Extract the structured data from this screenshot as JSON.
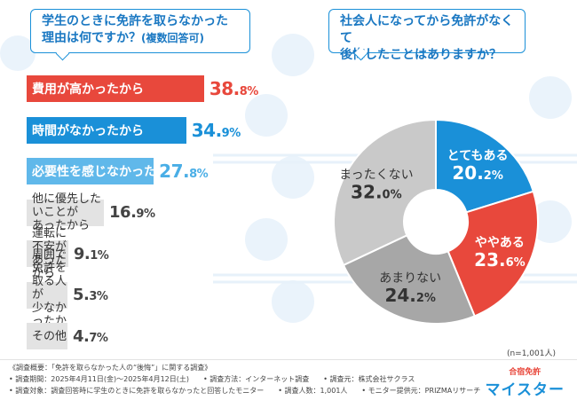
{
  "left_title": {
    "line1": "学生のときに免許を取らなかった",
    "line2": "理由は何ですか？",
    "note": "(複数回答可)"
  },
  "right_title": {
    "line1": "社会人になってから免許がなくて",
    "line2": "後悔したことはありますか？"
  },
  "colors": {
    "red": "#e8483c",
    "blue": "#1a90d8",
    "light_blue": "#60b8ea",
    "gray_bar": "#e3e3e3",
    "pie_gray": "#a7a7a7",
    "pie_lightgray": "#c9c9c9"
  },
  "chart_data": [
    {
      "type": "bar",
      "orientation": "horizontal",
      "categories": [
        "費用が高かったから",
        "時間がなかったから",
        "必要性を感じなかったから",
        "他に優先したいことがあったから",
        "運転に不安があったから",
        "周囲で免許を取る人が少なかったから",
        "その他"
      ],
      "values": [
        38.8,
        34.9,
        27.8,
        16.9,
        9.1,
        5.3,
        4.7
      ],
      "value_labels": [
        {
          "int": "38.",
          "dec": "8%"
        },
        {
          "int": "34.",
          "dec": "9%"
        },
        {
          "int": "27.",
          "dec": "8%"
        },
        {
          "int": "16.",
          "dec": "9%"
        },
        {
          "int": "9.",
          "dec": "1%"
        },
        {
          "int": "5.",
          "dec": "3%"
        },
        {
          "int": "4.",
          "dec": "7%"
        }
      ],
      "bar_colors": [
        "#e8483c",
        "#1a90d8",
        "#60b8ea",
        "#e3e3e3",
        "#e3e3e3",
        "#e3e3e3",
        "#e3e3e3"
      ],
      "label_colors": [
        "red",
        "blue",
        "lblue",
        "gray",
        "gray",
        "gray",
        "gray"
      ],
      "display_lines": [
        [
          "費用が高かったから"
        ],
        [
          "時間がなかったから"
        ],
        [
          "必要性を感じなかったから"
        ],
        [
          "他に優先したいことが",
          "あったから"
        ],
        [
          "運転に不安があったから"
        ],
        [
          "周囲で免許を取る人が",
          "少なかったから"
        ],
        [
          "その他"
        ]
      ],
      "unit": "%"
    },
    {
      "type": "pie",
      "style": "donut",
      "slices": [
        {
          "label": "とてもある",
          "value": 20.2,
          "value_label": {
            "int": "20.",
            "dec": "2%"
          },
          "color": "#1a90d8",
          "text_color": "#ffffff"
        },
        {
          "label": "ややある",
          "value": 23.6,
          "value_label": {
            "int": "23.",
            "dec": "6%"
          },
          "color": "#e8483c",
          "text_color": "#ffffff"
        },
        {
          "label": "あまりない",
          "value": 24.2,
          "value_label": {
            "int": "24.",
            "dec": "2%"
          },
          "color": "#a7a7a7",
          "text_color": "#333333"
        },
        {
          "label": "まったくない",
          "value": 32.0,
          "value_label": {
            "int": "32.",
            "dec": "0%"
          },
          "color": "#c9c9c9",
          "text_color": "#333333"
        }
      ],
      "start": "12 o'clock",
      "direction": "clockwise"
    }
  ],
  "sample_note": "(n=1,001人)",
  "footer": {
    "line1": "《調査概要：「免許を取らなかった人の“後悔”」に関する調査》",
    "line2": "• 調査期間：2025年4月11日(金)～2025年4月12日(土)　　• 調査方法：インターネット調査　　• 調査元：株式会社サクラス",
    "line3": "• 調査対象：調査回答時に学生のときに免許を取らなかったと回答したモニター　　• 調査人数：1,001人　　• モニター提供元：PRIZMAリサーチ"
  },
  "logo": {
    "top": "合宿免許",
    "main": "マイスター"
  }
}
